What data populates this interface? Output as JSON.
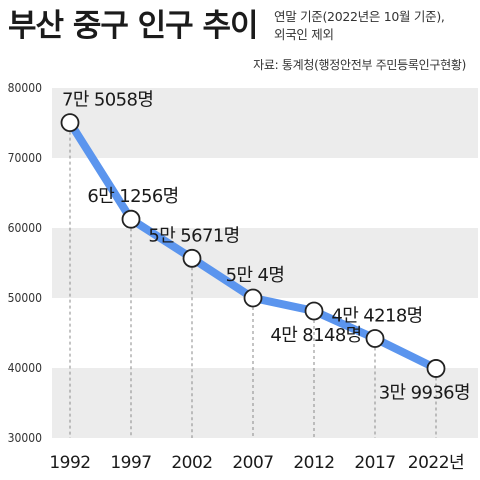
{
  "title": "부산 중구 인구 추이",
  "note": [
    "연말 기준(2022년은 10월 기준),",
    "외국인 제외"
  ],
  "source": "자료: 통계청(행정안전부 주민등록인구현황)",
  "colors": {
    "line": "#5b95ee",
    "band": "#ececec",
    "text": "#1a1a1a"
  },
  "chart_data": {
    "type": "line",
    "title": "부산 중구 인구 추이",
    "xlabel": "",
    "ylabel": "",
    "ylim": [
      30000,
      80000
    ],
    "yticks": [
      30000,
      40000,
      50000,
      60000,
      70000,
      80000
    ],
    "grid": "alternating horizontal bands",
    "x": [
      "1992",
      "1997",
      "2002",
      "2007",
      "2012",
      "2017",
      "2022년"
    ],
    "series": [
      {
        "values": [
          75058,
          61256,
          55671,
          50004,
          48148,
          44218,
          39936
        ]
      }
    ],
    "labels": [
      "7만 5058명",
      "6만 1256명",
      "5만 5671명",
      "5만 4명",
      "4만 8148명",
      "4만 4218명",
      "3만 9936명"
    ],
    "label_positions": [
      "above",
      "above",
      "above",
      "above",
      "below",
      "above",
      "below"
    ]
  }
}
